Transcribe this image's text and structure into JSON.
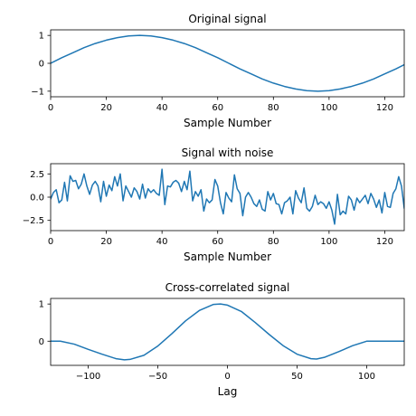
{
  "colors": {
    "line": "#1f77b4",
    "axes": "#000000",
    "background": "#ffffff"
  },
  "chart_data": [
    {
      "type": "line",
      "title": "Original signal",
      "xlabel": "Sample Number",
      "ylabel": "",
      "xlim": [
        0,
        127
      ],
      "ylim": [
        -1.2,
        1.2
      ],
      "xticks": [
        0,
        20,
        40,
        60,
        80,
        100,
        120
      ],
      "yticks": [
        -1,
        0,
        1
      ],
      "xtick_labels": [
        "0",
        "20",
        "40",
        "60",
        "80",
        "100",
        "120"
      ],
      "ytick_labels": [
        "−1",
        "0",
        "1"
      ],
      "grid": false,
      "series": [
        {
          "x": [
            0,
            4,
            8,
            12,
            16,
            20,
            24,
            28,
            32,
            36,
            40,
            44,
            48,
            52,
            56,
            60,
            64,
            68,
            72,
            76,
            80,
            84,
            88,
            92,
            96,
            100,
            104,
            108,
            112,
            116,
            120,
            124,
            127
          ],
          "values": [
            0.0,
            0.2,
            0.38,
            0.56,
            0.71,
            0.83,
            0.92,
            0.98,
            1.0,
            0.98,
            0.92,
            0.83,
            0.71,
            0.56,
            0.38,
            0.2,
            0.0,
            -0.2,
            -0.38,
            -0.56,
            -0.71,
            -0.83,
            -0.92,
            -0.98,
            -1.0,
            -0.98,
            -0.92,
            -0.83,
            -0.71,
            -0.56,
            -0.38,
            -0.2,
            -0.05
          ]
        }
      ]
    },
    {
      "type": "line",
      "title": "Signal with noise",
      "xlabel": "Sample Number",
      "ylabel": "",
      "xlim": [
        0,
        127
      ],
      "ylim": [
        -3.6,
        3.6
      ],
      "xticks": [
        0,
        20,
        40,
        60,
        80,
        100,
        120
      ],
      "yticks": [
        -2.5,
        0,
        2.5
      ],
      "xtick_labels": [
        "0",
        "20",
        "40",
        "60",
        "80",
        "100",
        "120"
      ],
      "ytick_labels": [
        "−2.5",
        "0.0",
        "2.5"
      ],
      "grid": false,
      "series": [
        {
          "x": [
            0,
            1,
            2,
            3,
            4,
            5,
            6,
            7,
            8,
            9,
            10,
            11,
            12,
            13,
            14,
            15,
            16,
            17,
            18,
            19,
            20,
            21,
            22,
            23,
            24,
            25,
            26,
            27,
            28,
            29,
            30,
            31,
            32,
            33,
            34,
            35,
            36,
            37,
            38,
            39,
            40,
            41,
            42,
            43,
            44,
            45,
            46,
            47,
            48,
            49,
            50,
            51,
            52,
            53,
            54,
            55,
            56,
            57,
            58,
            59,
            60,
            61,
            62,
            63,
            64,
            65,
            66,
            67,
            68,
            69,
            70,
            71,
            72,
            73,
            74,
            75,
            76,
            77,
            78,
            79,
            80,
            81,
            82,
            83,
            84,
            85,
            86,
            87,
            88,
            89,
            90,
            91,
            92,
            93,
            94,
            95,
            96,
            97,
            98,
            99,
            100,
            101,
            102,
            103,
            104,
            105,
            106,
            107,
            108,
            109,
            110,
            111,
            112,
            113,
            114,
            115,
            116,
            117,
            118,
            119,
            120,
            121,
            122,
            123,
            124,
            125,
            126,
            127
          ],
          "values": [
            -0.2,
            0.5,
            0.8,
            -0.6,
            -0.3,
            1.6,
            -0.4,
            2.3,
            1.7,
            1.8,
            0.9,
            1.4,
            2.5,
            1.2,
            0.3,
            1.3,
            1.7,
            1.2,
            -0.5,
            1.7,
            0.1,
            1.3,
            0.7,
            2.2,
            1.2,
            2.5,
            -0.4,
            1.2,
            0.6,
            0.0,
            1.0,
            0.6,
            -0.2,
            1.4,
            -0.1,
            0.9,
            0.5,
            0.8,
            0.4,
            0.2,
            3.0,
            -0.8,
            1.2,
            1.1,
            1.6,
            1.8,
            1.5,
            0.6,
            1.7,
            0.8,
            2.8,
            -0.4,
            0.6,
            0.1,
            0.8,
            -1.5,
            -0.2,
            -0.6,
            -0.3,
            1.9,
            1.2,
            -0.6,
            -1.8,
            0.5,
            -0.1,
            -0.5,
            2.4,
            0.9,
            0.4,
            -2.0,
            0.0,
            0.5,
            0.0,
            -0.7,
            -1.0,
            -0.3,
            -1.3,
            -1.5,
            0.6,
            -0.3,
            0.4,
            -0.7,
            -0.8,
            -1.8,
            -0.6,
            -0.4,
            0.0,
            -1.8,
            0.7,
            -0.1,
            -0.6,
            1.0,
            -1.2,
            -1.5,
            -1.0,
            0.2,
            -0.8,
            -0.5,
            -0.7,
            -1.2,
            -0.5,
            -1.4,
            -2.9,
            0.3,
            -1.9,
            -1.5,
            -1.8,
            0.1,
            -0.3,
            -1.4,
            -0.1,
            -0.6,
            -0.2,
            0.2,
            -0.7,
            0.4,
            -0.2,
            -1.1,
            -0.3,
            -1.7,
            0.5,
            -1.0,
            -1.1,
            0.4,
            0.9,
            2.2,
            1.2,
            -1.2
          ]
        }
      ]
    },
    {
      "type": "line",
      "title": "Cross-correlated signal",
      "xlabel": "Lag",
      "ylabel": "",
      "xlim": [
        -127,
        127
      ],
      "ylim": [
        -0.65,
        1.15
      ],
      "xticks": [
        -100,
        -50,
        0,
        50,
        100
      ],
      "yticks": [
        0,
        1
      ],
      "xtick_labels": [
        "−100",
        "−50",
        "0",
        "50",
        "100"
      ],
      "ytick_labels": [
        "0",
        "1"
      ],
      "grid": false,
      "series": [
        {
          "x": [
            -127,
            -120,
            -110,
            -100,
            -90,
            -80,
            -74,
            -70,
            -60,
            -50,
            -40,
            -30,
            -20,
            -10,
            -5,
            0,
            10,
            20,
            30,
            40,
            50,
            60,
            64,
            70,
            80,
            90,
            100,
            110,
            120,
            127
          ],
          "values": [
            0.0,
            0.0,
            -0.08,
            -0.22,
            -0.35,
            -0.47,
            -0.5,
            -0.49,
            -0.38,
            -0.13,
            0.2,
            0.55,
            0.83,
            0.99,
            1.0,
            0.97,
            0.8,
            0.5,
            0.18,
            -0.12,
            -0.35,
            -0.47,
            -0.48,
            -0.43,
            -0.28,
            -0.12,
            0.0,
            0.0,
            0.0,
            0.0
          ]
        }
      ]
    }
  ]
}
